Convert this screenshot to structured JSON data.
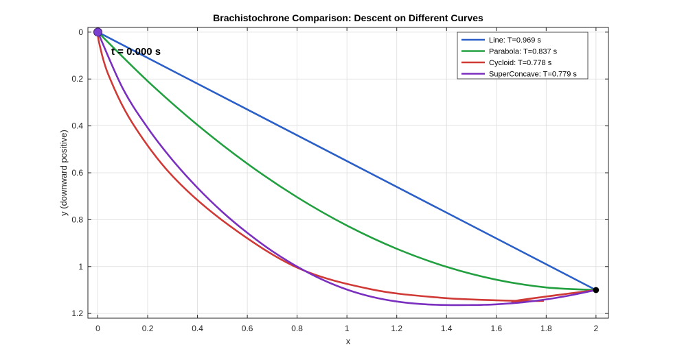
{
  "chart_data": {
    "type": "line",
    "title": "Brachistochrone Comparison: Descent on Different Curves",
    "xlabel": "x",
    "ylabel": "y (downward positive)",
    "xlim": [
      -0.04,
      2.05
    ],
    "ylim": [
      -0.02,
      1.22
    ],
    "y_reversed": true,
    "grid": true,
    "legend_position": "top-right",
    "xticks": [
      0,
      0.2,
      0.4,
      0.6,
      0.8,
      1,
      1.2,
      1.4,
      1.6,
      1.8,
      2
    ],
    "xtick_labels": [
      "0",
      "0.2",
      "0.4",
      "0.6",
      "0.8",
      "1",
      "1.2",
      "1.4",
      "1.6",
      "1.8",
      "2"
    ],
    "yticks": [
      0,
      0.2,
      0.4,
      0.6,
      0.8,
      1,
      1.2
    ],
    "ytick_labels": [
      "0",
      "0.2",
      "0.4",
      "0.6",
      "0.8",
      "1",
      "1.2"
    ],
    "annotation": "t = 0.000 s",
    "start_point": {
      "x": 0,
      "y": 0,
      "color": "#7a3fd0"
    },
    "end_point": {
      "x": 2,
      "y": 1.1,
      "color": "#000000"
    },
    "series": [
      {
        "name": "Line: T=0.969 s",
        "color": "#2b5fc8",
        "x": [
          0,
          2
        ],
        "y": [
          0,
          1.1
        ]
      },
      {
        "name": "Parabola: T=0.837 s",
        "color": "#22a040",
        "x": [
          0,
          0.2,
          0.4,
          0.6,
          0.8,
          1.0,
          1.2,
          1.4,
          1.6,
          1.8,
          2.0
        ],
        "y": [
          0,
          0.209,
          0.396,
          0.561,
          0.704,
          0.825,
          0.924,
          1.001,
          1.056,
          1.089,
          1.1
        ]
      },
      {
        "name": "Cycloid: T=0.778 s",
        "color": "#d03a36",
        "x": [
          0,
          0.0055,
          0.0427,
          0.1376,
          0.3012,
          0.5293,
          0.8038,
          1.0964,
          1.3727,
          1.5976,
          1.7401,
          1.7873,
          1.7517,
          1.6731,
          2.0
        ],
        "y": [
          0,
          0.0474,
          0.1829,
          0.3858,
          0.6156,
          0.8262,
          1.0061,
          1.0966,
          1.1325,
          1.1437,
          1.1465,
          1.1465,
          1.1465,
          1.1465,
          1.1
        ],
        "note": "approximate"
      },
      {
        "name": "SuperConcave: T=0.779 s",
        "color": "#7a2fbf",
        "x": [
          0,
          0.1,
          0.2,
          0.3,
          0.4,
          0.5,
          0.6,
          0.7,
          0.8,
          0.9,
          1.0,
          1.1,
          1.2,
          1.3,
          1.4,
          1.5,
          1.55,
          1.6,
          1.7,
          1.8,
          1.9,
          2.0
        ],
        "y": [
          0,
          0.24,
          0.408,
          0.546,
          0.664,
          0.767,
          0.856,
          0.934,
          1.0,
          1.055,
          1.098,
          1.129,
          1.149,
          1.16,
          1.164,
          1.164,
          1.163,
          1.161,
          1.153,
          1.14,
          1.122,
          1.1
        ]
      }
    ]
  }
}
